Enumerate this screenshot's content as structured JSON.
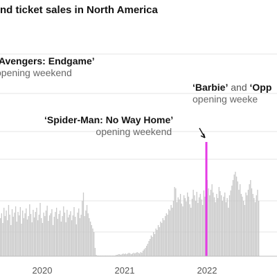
{
  "chart_data": {
    "type": "bar",
    "title": "nd ticket sales in North America",
    "x_ticks": [
      "2020",
      "2021",
      "2022"
    ],
    "annotations": [
      {
        "label": "‘Avengers: Endgame’",
        "sub": "opening weekend"
      },
      {
        "label": "‘Spider-Man: No Way Home’",
        "sub": "opening weekend"
      },
      {
        "label": "‘Barbie’",
        "joiner": "and",
        "label2": "‘Opp",
        "sub": "opening weeke"
      }
    ],
    "series": [
      {
        "values": [
          55,
          62,
          48,
          70,
          58,
          66,
          52,
          74,
          60,
          45,
          68,
          57,
          63,
          72,
          50,
          64,
          59,
          71,
          47,
          66,
          55,
          62,
          69,
          53,
          58,
          75,
          61,
          49,
          67,
          56,
          64,
          70,
          52,
          60,
          77,
          55,
          48,
          63,
          58,
          66,
          73,
          51,
          59,
          62,
          68,
          45,
          57,
          64,
          70,
          54,
          61,
          66,
          50,
          58,
          72,
          63,
          49,
          67,
          56,
          60,
          65,
          52,
          59,
          71,
          57,
          46,
          63,
          69,
          55,
          60,
          80,
          92,
          58,
          66,
          74,
          62,
          55,
          50,
          45,
          40,
          35,
          12,
          2,
          1,
          1,
          1,
          1,
          1,
          1,
          1,
          1,
          1,
          1,
          1,
          1,
          1,
          1,
          1,
          1,
          2,
          2,
          3,
          3,
          2,
          3,
          4,
          3,
          4,
          3,
          4,
          5,
          4,
          3,
          4,
          5,
          4,
          5,
          6,
          5,
          4,
          6,
          5,
          8,
          10,
          12,
          15,
          18,
          22,
          25,
          30,
          28,
          35,
          32,
          40,
          38,
          45,
          42,
          50,
          48,
          55,
          52,
          58,
          62,
          60,
          68,
          66,
          74,
          70,
          80,
          100,
          98,
          78,
          85,
          82,
          90,
          76,
          72,
          88,
          84,
          79,
          92,
          86,
          75,
          70,
          83,
          96,
          88,
          80,
          93,
          77,
          85,
          90,
          82,
          74,
          95,
          86,
          102,
          110,
          98,
          88,
          96,
          104,
          92,
          85,
          78,
          90,
          84,
          100,
          94,
          88,
          80,
          86,
          92,
          78,
          84,
          70,
          88,
          95,
          102,
          110,
          118,
          122,
          115,
          108,
          96,
          104,
          90,
          86,
          80,
          74,
          92,
          88,
          96,
          104,
          110,
          98,
          90,
          84,
          78,
          88,
          96,
          80
        ]
      }
    ],
    "highlight": {
      "value": 165
    },
    "colors": {
      "bar": "#c8c8c8",
      "highlight": "#e63be6",
      "text": "#121212",
      "muted": "#666666",
      "grid": "#e6e6e6",
      "axis": "#bdbdbd"
    }
  }
}
